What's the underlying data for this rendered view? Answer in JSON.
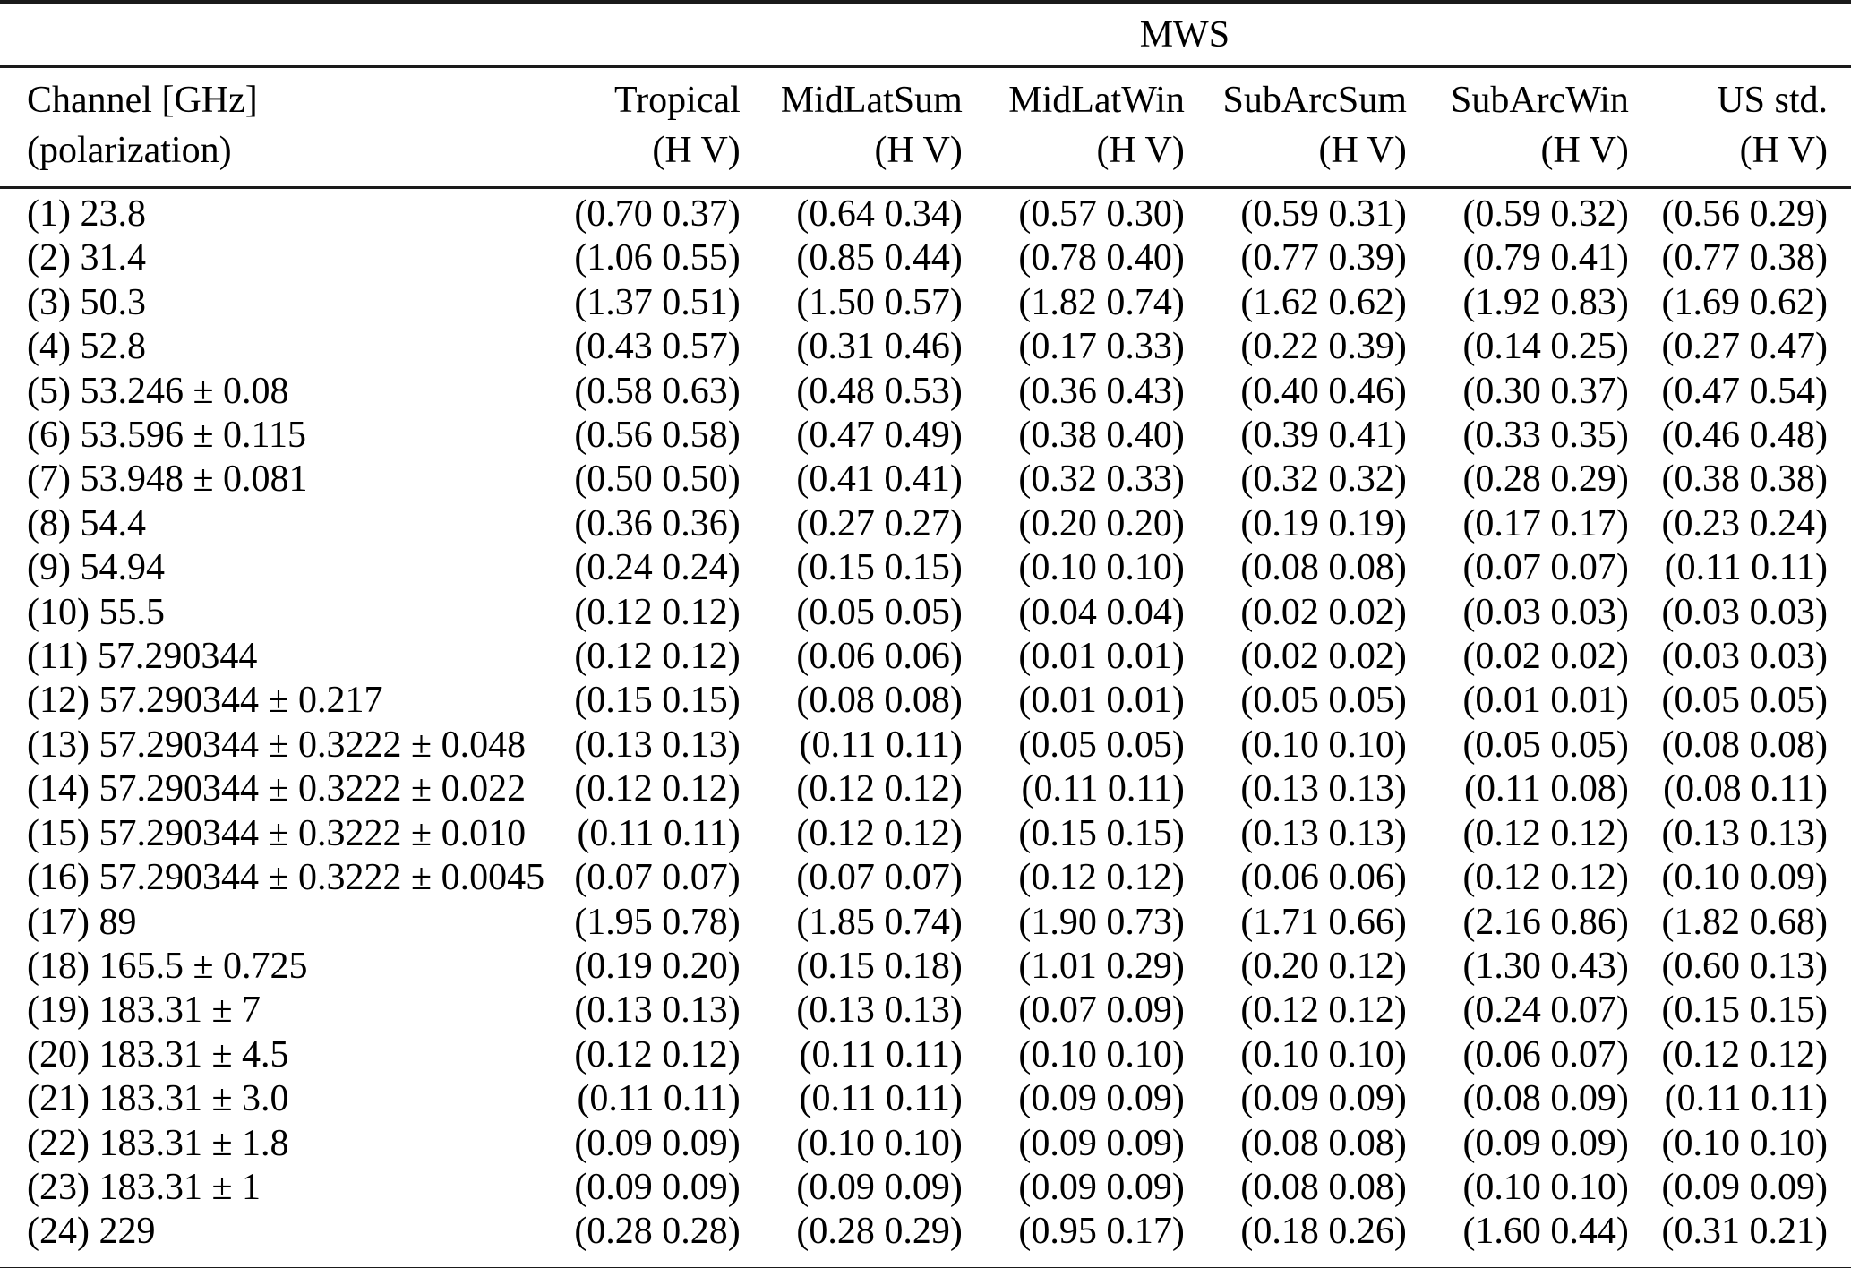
{
  "table": {
    "group_header": "MWS",
    "channel_header": {
      "line1": "Channel [GHz]",
      "line2": "(polarization)"
    },
    "columns": [
      {
        "name": "Tropical",
        "sub": "(H V)"
      },
      {
        "name": "MidLatSum",
        "sub": "(H V)"
      },
      {
        "name": "MidLatWin",
        "sub": "(H V)"
      },
      {
        "name": "SubArcSum",
        "sub": "(H V)"
      },
      {
        "name": "SubArcWin",
        "sub": "(H V)"
      },
      {
        "name": "US std.",
        "sub": "(H V)"
      }
    ],
    "rows": [
      {
        "channel": "(1) 23.8",
        "values": [
          "(0.70 0.37)",
          "(0.64 0.34)",
          "(0.57 0.30)",
          "(0.59 0.31)",
          "(0.59 0.32)",
          "(0.56 0.29)"
        ]
      },
      {
        "channel": "(2) 31.4",
        "values": [
          "(1.06 0.55)",
          "(0.85 0.44)",
          "(0.78 0.40)",
          "(0.77 0.39)",
          "(0.79 0.41)",
          "(0.77 0.38)"
        ]
      },
      {
        "channel": "(3) 50.3",
        "values": [
          "(1.37 0.51)",
          "(1.50 0.57)",
          "(1.82 0.74)",
          "(1.62 0.62)",
          "(1.92 0.83)",
          "(1.69 0.62)"
        ]
      },
      {
        "channel": "(4) 52.8",
        "values": [
          "(0.43 0.57)",
          "(0.31 0.46)",
          "(0.17 0.33)",
          "(0.22 0.39)",
          "(0.14 0.25)",
          "(0.27 0.47)"
        ]
      },
      {
        "channel": "(5) 53.246 ± 0.08",
        "values": [
          "(0.58 0.63)",
          "(0.48 0.53)",
          "(0.36 0.43)",
          "(0.40 0.46)",
          "(0.30 0.37)",
          "(0.47 0.54)"
        ]
      },
      {
        "channel": "(6) 53.596 ± 0.115",
        "values": [
          "(0.56 0.58)",
          "(0.47 0.49)",
          "(0.38 0.40)",
          "(0.39 0.41)",
          "(0.33 0.35)",
          "(0.46 0.48)"
        ]
      },
      {
        "channel": "(7) 53.948 ± 0.081",
        "values": [
          "(0.50 0.50)",
          "(0.41 0.41)",
          "(0.32 0.33)",
          "(0.32 0.32)",
          "(0.28 0.29)",
          "(0.38 0.38)"
        ]
      },
      {
        "channel": "(8) 54.4",
        "values": [
          "(0.36 0.36)",
          "(0.27 0.27)",
          "(0.20 0.20)",
          "(0.19 0.19)",
          "(0.17 0.17)",
          "(0.23 0.24)"
        ]
      },
      {
        "channel": "(9) 54.94",
        "values": [
          "(0.24 0.24)",
          "(0.15 0.15)",
          "(0.10 0.10)",
          "(0.08 0.08)",
          "(0.07 0.07)",
          "(0.11 0.11)"
        ]
      },
      {
        "channel": "(10) 55.5",
        "values": [
          "(0.12 0.12)",
          "(0.05 0.05)",
          "(0.04 0.04)",
          "(0.02 0.02)",
          "(0.03 0.03)",
          "(0.03 0.03)"
        ]
      },
      {
        "channel": "(11) 57.290344",
        "values": [
          "(0.12 0.12)",
          "(0.06 0.06)",
          "(0.01 0.01)",
          "(0.02 0.02)",
          "(0.02 0.02)",
          "(0.03 0.03)"
        ]
      },
      {
        "channel": "(12) 57.290344 ± 0.217",
        "values": [
          "(0.15 0.15)",
          "(0.08 0.08)",
          "(0.01 0.01)",
          "(0.05 0.05)",
          "(0.01 0.01)",
          "(0.05 0.05)"
        ]
      },
      {
        "channel": "(13) 57.290344 ± 0.3222 ± 0.048",
        "values": [
          "(0.13 0.13)",
          "(0.11 0.11)",
          "(0.05 0.05)",
          "(0.10 0.10)",
          "(0.05 0.05)",
          "(0.08 0.08)"
        ]
      },
      {
        "channel": "(14) 57.290344 ± 0.3222 ± 0.022",
        "values": [
          "(0.12 0.12)",
          "(0.12 0.12)",
          "(0.11 0.11)",
          "(0.13 0.13)",
          "(0.11 0.08)",
          "(0.08 0.11)"
        ]
      },
      {
        "channel": "(15) 57.290344 ± 0.3222 ± 0.010",
        "values": [
          "(0.11 0.11)",
          "(0.12 0.12)",
          "(0.15 0.15)",
          "(0.13 0.13)",
          "(0.12 0.12)",
          "(0.13 0.13)"
        ]
      },
      {
        "channel": "(16) 57.290344 ± 0.3222 ± 0.0045",
        "values": [
          "(0.07 0.07)",
          "(0.07 0.07)",
          "(0.12 0.12)",
          "(0.06 0.06)",
          "(0.12 0.12)",
          "(0.10 0.09)"
        ]
      },
      {
        "channel": "(17) 89",
        "values": [
          "(1.95 0.78)",
          "(1.85 0.74)",
          "(1.90 0.73)",
          "(1.71 0.66)",
          "(2.16 0.86)",
          "(1.82 0.68)"
        ]
      },
      {
        "channel": "(18) 165.5 ± 0.725",
        "values": [
          "(0.19 0.20)",
          "(0.15 0.18)",
          "(1.01 0.29)",
          "(0.20 0.12)",
          "(1.30 0.43)",
          "(0.60 0.13)"
        ]
      },
      {
        "channel": "(19) 183.31 ± 7",
        "values": [
          "(0.13 0.13)",
          "(0.13 0.13)",
          "(0.07 0.09)",
          "(0.12 0.12)",
          "(0.24 0.07)",
          "(0.15 0.15)"
        ]
      },
      {
        "channel": "(20) 183.31 ± 4.5",
        "values": [
          "(0.12 0.12)",
          "(0.11 0.11)",
          "(0.10 0.10)",
          "(0.10 0.10)",
          "(0.06 0.07)",
          "(0.12 0.12)"
        ]
      },
      {
        "channel": "(21) 183.31 ± 3.0",
        "values": [
          "(0.11 0.11)",
          "(0.11 0.11)",
          "(0.09 0.09)",
          "(0.09 0.09)",
          "(0.08 0.09)",
          "(0.11 0.11)"
        ]
      },
      {
        "channel": "(22) 183.31 ± 1.8",
        "values": [
          "(0.09 0.09)",
          "(0.10 0.10)",
          "(0.09 0.09)",
          "(0.08 0.08)",
          "(0.09 0.09)",
          "(0.10 0.10)"
        ]
      },
      {
        "channel": "(23) 183.31 ± 1",
        "values": [
          "(0.09 0.09)",
          "(0.09 0.09)",
          "(0.09 0.09)",
          "(0.08 0.08)",
          "(0.10 0.10)",
          "(0.09 0.09)"
        ]
      },
      {
        "channel": "(24) 229",
        "values": [
          "(0.28 0.28)",
          "(0.28 0.29)",
          "(0.95 0.17)",
          "(0.18 0.26)",
          "(1.60 0.44)",
          "(0.31 0.21)"
        ]
      }
    ]
  }
}
